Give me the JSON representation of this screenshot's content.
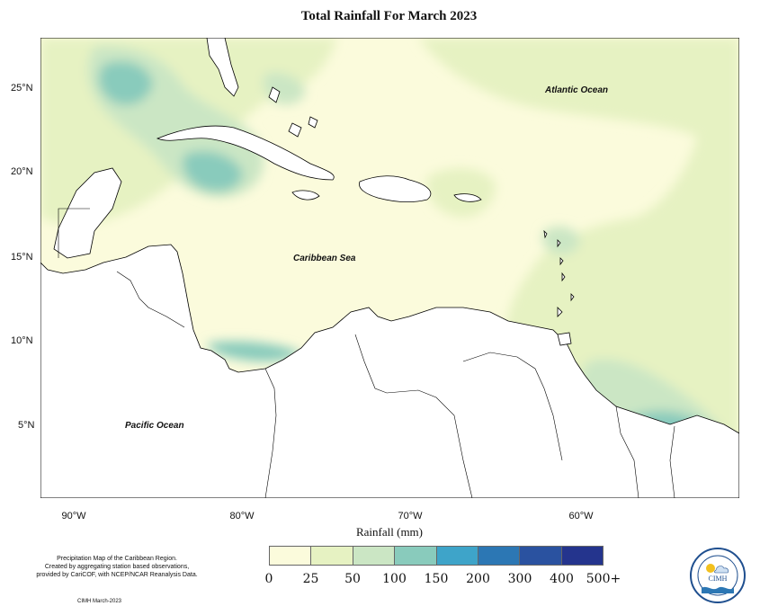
{
  "title": "Total Rainfall For March 2023",
  "xlabel": "Rainfall (mm)",
  "latitude_ticks": [
    "25°N",
    "20°N",
    "15°N",
    "10°N",
    "5°N"
  ],
  "longitude_ticks": [
    "90°W",
    "80°W",
    "70°W",
    "60°W"
  ],
  "places": {
    "atlantic": "Atlantic Ocean",
    "caribbean": "Caribbean Sea",
    "pacific": "Pacific Ocean"
  },
  "legend": {
    "labels": [
      "0",
      "25",
      "50",
      "100",
      "150",
      "200",
      "300",
      "400",
      "500+"
    ],
    "colors": [
      "#fbfbdc",
      "#e6f2c2",
      "#cbe6c4",
      "#89cbbc",
      "#3ea4c9",
      "#2c77b4",
      "#2a52a0",
      "#24348d",
      "#0a1f55"
    ]
  },
  "map_colors": {
    "background": "#fbfbdc",
    "land": "#ffffff",
    "coast": "#000000"
  },
  "credits": {
    "line1": "Precipitation Map of the Caribbean Region.",
    "line2": "Created by aggregating station based observations,",
    "line3": "provided by CariCOF, with NCEP/NCAR Reanalysis Data.",
    "stamp": "CIMH March-2023"
  },
  "logo": {
    "text": "CIMH"
  }
}
